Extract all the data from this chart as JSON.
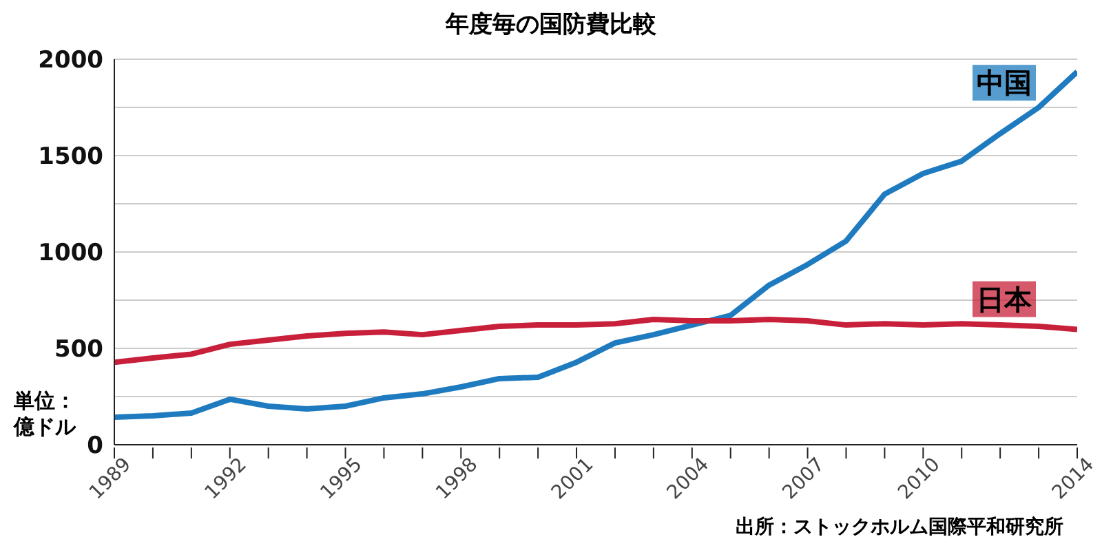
{
  "chart_data": {
    "type": "line",
    "title": "年度毎の国防費比較",
    "ylabel": "単位：億ドル",
    "x": [
      1989,
      1990,
      1991,
      1992,
      1993,
      1994,
      1995,
      1996,
      1997,
      1998,
      1999,
      2000,
      2001,
      2002,
      2003,
      2004,
      2005,
      2006,
      2007,
      2008,
      2009,
      2010,
      2011,
      2012,
      2013,
      2014
    ],
    "series": [
      {
        "name": "中国",
        "color": "#1f7bbf",
        "values": [
          143,
          150,
          164,
          236,
          200,
          186,
          200,
          243,
          264,
          300,
          343,
          350,
          428,
          528,
          571,
          621,
          671,
          828,
          935,
          1057,
          1300,
          1407,
          1471,
          1614,
          1750,
          1935
        ]
      },
      {
        "name": "日本",
        "color": "#c8203a",
        "values": [
          428,
          450,
          470,
          521,
          543,
          564,
          578,
          585,
          571,
          593,
          614,
          621,
          621,
          628,
          650,
          643,
          643,
          650,
          643,
          621,
          628,
          621,
          628,
          621,
          614,
          598
        ]
      }
    ],
    "xlim": [
      1989,
      2014
    ],
    "xticks": [
      1989,
      {
        "value": 1990,
        "label": null
      },
      {
        "value": 1991,
        "label": null
      },
      1992,
      {
        "value": 1993,
        "label": null
      },
      {
        "value": 1994,
        "label": null
      },
      1995,
      {
        "value": 1996,
        "label": null
      },
      {
        "value": 1997,
        "label": null
      },
      1998,
      {
        "value": 1999,
        "label": null
      },
      {
        "value": 2000,
        "label": null
      },
      2001,
      {
        "value": 2002,
        "label": null
      },
      {
        "value": 2003,
        "label": null
      },
      2004,
      {
        "value": 2005,
        "label": null
      },
      {
        "value": 2006,
        "label": null
      },
      2007,
      {
        "value": 2008,
        "label": null
      },
      {
        "value": 2009,
        "label": null
      },
      2010,
      {
        "value": 2011,
        "label": null
      },
      {
        "value": 2012,
        "label": null
      },
      {
        "value": 2013,
        "label": null
      },
      2014
    ],
    "ylim": [
      0,
      2000
    ],
    "yticks": [
      0,
      {
        "value": 250,
        "label": null
      },
      500,
      {
        "value": 750,
        "label": null
      },
      1000,
      {
        "value": 1250,
        "label": null
      },
      1500,
      {
        "value": 1750,
        "label": null
      },
      2000
    ],
    "grid": "y",
    "marker": "none",
    "line_style": "solid",
    "annotations": [
      "出所：ストックホルム国際平和研究所"
    ]
  }
}
